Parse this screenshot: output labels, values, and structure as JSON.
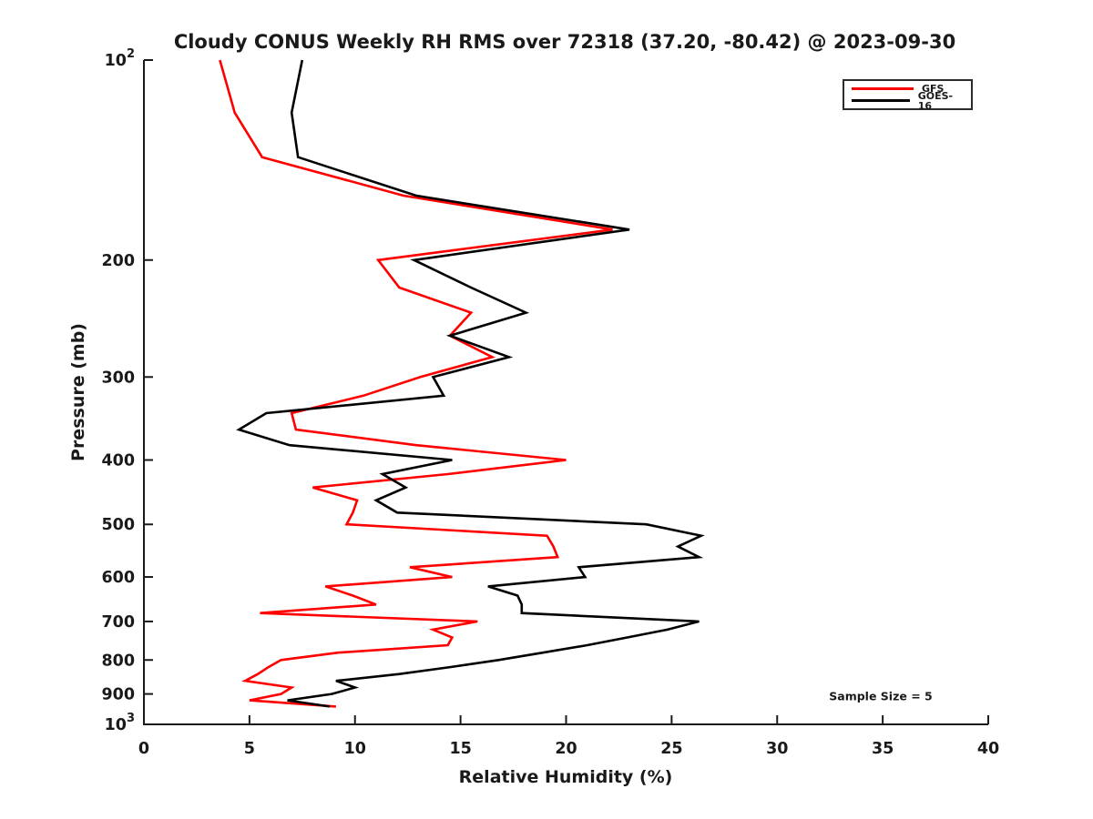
{
  "chart_data": {
    "type": "line",
    "title": "Cloudy CONUS Weekly RH RMS over 72318 (37.20, -80.42) @ 2023-09-30",
    "xlabel": "Relative Humidity (%)",
    "ylabel": "Pressure (mb)",
    "annotation": "Sample Size = 5",
    "xlim": [
      0,
      40
    ],
    "ylim": [
      100,
      1000
    ],
    "y_scale": "log",
    "y_inverted": true,
    "grid": false,
    "legend_position": "top-right",
    "x_ticks": [
      0,
      5,
      10,
      15,
      20,
      25,
      30,
      35,
      40
    ],
    "y_ticks": [
      {
        "value": 100,
        "base": "10",
        "sup": "2"
      },
      {
        "value": 200,
        "label": "200"
      },
      {
        "value": 300,
        "label": "300"
      },
      {
        "value": 400,
        "label": "400"
      },
      {
        "value": 500,
        "label": "500"
      },
      {
        "value": 600,
        "label": "600"
      },
      {
        "value": 700,
        "label": "700"
      },
      {
        "value": 800,
        "label": "800"
      },
      {
        "value": 900,
        "label": "900"
      },
      {
        "value": 1000,
        "base": "10",
        "sup": "3"
      }
    ],
    "pressure_levels_mb": [
      100,
      120,
      140,
      160,
      180,
      200,
      220,
      240,
      260,
      280,
      300,
      320,
      340,
      360,
      380,
      400,
      420,
      440,
      460,
      480,
      500,
      520,
      540,
      560,
      580,
      600,
      620,
      640,
      660,
      680,
      700,
      720,
      740,
      760,
      780,
      800,
      820,
      840,
      860,
      880,
      900,
      920,
      940
    ],
    "series": [
      {
        "name": "GFS",
        "color": "#ff0000",
        "values": [
          3.6,
          4.3,
          5.6,
          12.3,
          22.2,
          11.1,
          12.1,
          15.5,
          14.5,
          16.5,
          13.1,
          10.4,
          7.0,
          7.2,
          12.9,
          20.0,
          14.4,
          8.0,
          10.1,
          9.9,
          9.6,
          19.1,
          19.4,
          19.6,
          12.6,
          14.6,
          8.6,
          9.9,
          11.0,
          5.5,
          15.8,
          13.7,
          14.6,
          14.4,
          9.2,
          6.5,
          5.9,
          5.4,
          4.8,
          7.0,
          6.5,
          5.0,
          9.1
        ]
      },
      {
        "name": "GOES-16",
        "color": "#000000",
        "values": [
          7.5,
          7.0,
          7.3,
          12.9,
          23.0,
          12.8,
          15.5,
          18.1,
          14.5,
          17.3,
          13.7,
          14.2,
          5.8,
          4.5,
          6.9,
          14.6,
          11.3,
          12.4,
          11.0,
          12.0,
          23.8,
          26.4,
          25.3,
          26.3,
          20.6,
          20.9,
          16.3,
          17.7,
          17.9,
          17.9,
          26.3,
          24.8,
          22.9,
          21.0,
          18.9,
          16.8,
          14.5,
          12.1,
          9.1,
          10.0,
          8.9,
          6.8,
          8.8
        ]
      }
    ]
  }
}
